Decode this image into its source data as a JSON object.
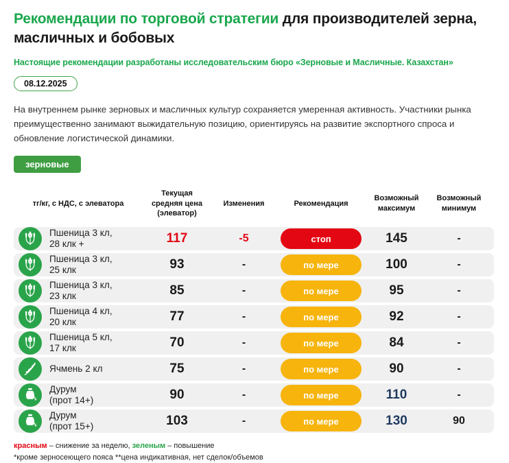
{
  "header": {
    "title_green": "Рекомендации по торговой стратегии",
    "title_dark": " для производителей зерна, масличных и бобовых",
    "subtitle": "Настоящие рекомендации разработаны исследовательским бюро «Зерновые и Масличные. Казахстан»",
    "date": "08.12.2025"
  },
  "summary": "На внутреннем рынке зерновых и масличных культур сохраняется умеренная активность. Участники рынка преимущественно занимают выжидательную позицию, ориентируясь на развитие экспортного спроса и обновление логистической динамики.",
  "category_button": "зерновые",
  "colors": {
    "accent_green": "#1aa74d",
    "icon_green": "#2aa44a",
    "stop_red": "#e30613",
    "wait_yellow": "#f6b40d",
    "navy": "#1f3a5f",
    "row_gray": "#f0f0f0"
  },
  "table": {
    "headers": [
      "тг/кг, с НДС, с элеватора",
      "Текущая средняя цена (элеватор)",
      "Изменения",
      "Рекомендация",
      "Возможный максимум",
      "Возможный минимум"
    ],
    "rows": [
      {
        "icon": "wheat",
        "name_lines": [
          "Пшеница 3 кл,",
          "28 клк +"
        ],
        "price": "117",
        "price_style": "red",
        "change": "-5",
        "change_style": "red",
        "recommendation": "стоп",
        "recommendation_style": "stop",
        "max": "145",
        "max_style": "plain",
        "min": "-"
      },
      {
        "icon": "wheat",
        "name_lines": [
          "Пшеница 3 кл,",
          "25 клк"
        ],
        "price": "93",
        "price_style": "plain",
        "change": "-",
        "change_style": "plain",
        "recommendation": "по мере",
        "recommendation_style": "wait",
        "max": "100",
        "max_style": "plain",
        "min": "-"
      },
      {
        "icon": "wheat",
        "name_lines": [
          "Пшеница 3 кл,",
          "23 клк"
        ],
        "price": "85",
        "price_style": "plain",
        "change": "-",
        "change_style": "plain",
        "recommendation": "по мере",
        "recommendation_style": "wait",
        "max": "95",
        "max_style": "plain",
        "min": "-"
      },
      {
        "icon": "wheat",
        "name_lines": [
          "Пшеница 4 кл,",
          "20 клк"
        ],
        "price": "77",
        "price_style": "plain",
        "change": "-",
        "change_style": "plain",
        "recommendation": "по мере",
        "recommendation_style": "wait",
        "max": "92",
        "max_style": "plain",
        "min": "-"
      },
      {
        "icon": "wheat",
        "name_lines": [
          "Пшеница 5 кл,",
          "17 клк"
        ],
        "price": "70",
        "price_style": "plain",
        "change": "-",
        "change_style": "plain",
        "recommendation": "по мере",
        "recommendation_style": "wait",
        "max": "84",
        "max_style": "plain",
        "min": "-"
      },
      {
        "icon": "barley",
        "name_lines": [
          "Ячмень 2 кл"
        ],
        "price": "75",
        "price_style": "plain",
        "change": "-",
        "change_style": "plain",
        "recommendation": "по мере",
        "recommendation_style": "wait",
        "max": "90",
        "max_style": "plain",
        "min": "-"
      },
      {
        "icon": "sack",
        "name_lines": [
          "Дурум",
          "(прот 14+)"
        ],
        "price": "90",
        "price_style": "plain",
        "change": "-",
        "change_style": "plain",
        "recommendation": "по мере",
        "recommendation_style": "wait",
        "max": "110",
        "max_style": "navy",
        "min": "-"
      },
      {
        "icon": "sack",
        "name_lines": [
          "Дурум",
          "(прот 15+)"
        ],
        "price": "103",
        "price_style": "plain",
        "change": "-",
        "change_style": "plain",
        "recommendation": "по мере",
        "recommendation_style": "wait",
        "max": "130",
        "max_style": "navy",
        "min": "90"
      }
    ]
  },
  "footnotes": {
    "legend_segments": [
      {
        "text": "красным",
        "style": "red"
      },
      {
        "text": " – снижение за неделю, ",
        "style": "plain"
      },
      {
        "text": "зеленым",
        "style": "green"
      },
      {
        "text": " – повышение",
        "style": "plain"
      }
    ],
    "note": "*кроме зерносеющего пояса **цена индикативная, нет сделок/объемов"
  }
}
